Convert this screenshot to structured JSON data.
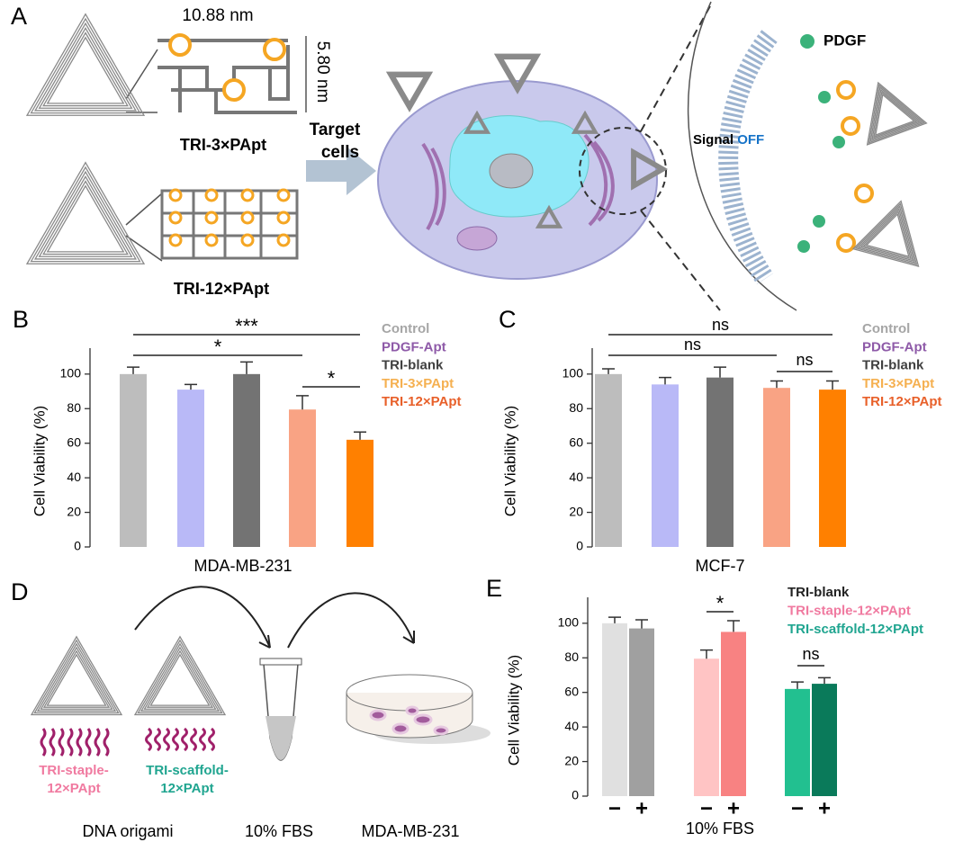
{
  "panel_a": {
    "label": "A",
    "dim_width": "10.88 nm",
    "dim_height": "5.80 nm",
    "structures": [
      "TRI-3×PApt",
      "TRI-12×PApt"
    ],
    "arrow_label": [
      "Target",
      "cells"
    ],
    "ligand": "PDGF",
    "signal": "Signal",
    "signal_state": "OFF"
  },
  "panel_d": {
    "label": "D",
    "samples": [
      [
        "TRI-staple-",
        "12×PApt"
      ],
      [
        "TRI-scaffold-",
        "12×PApt"
      ]
    ],
    "steps": [
      "DNA origami",
      "10% FBS",
      "MDA-MB-231"
    ]
  },
  "chart_data": [
    {
      "type": "bar",
      "panel": "B",
      "categories": [
        "MDA-MB-231"
      ],
      "ylabel": "Cell Viability (%)",
      "ylim": [
        0,
        115
      ],
      "yticks": [
        0,
        20,
        40,
        60,
        80,
        100
      ],
      "series": [
        {
          "name": "Control",
          "color": "#bdbdbd",
          "legend_color": "#a6a6a6",
          "values": [
            100
          ],
          "errors": [
            4
          ]
        },
        {
          "name": "PDGF-Apt",
          "color": "#b9b9f7",
          "legend_color": "#8e5aa8",
          "values": [
            91
          ],
          "errors": [
            3
          ]
        },
        {
          "name": "TRI-blank",
          "color": "#737373",
          "legend_color": "#404040",
          "values": [
            100
          ],
          "errors": [
            7
          ]
        },
        {
          "name": "TRI-3×PApt",
          "color": "#f9a384",
          "legend_color": "#f5b050",
          "values": [
            79.5
          ],
          "errors": [
            8
          ]
        },
        {
          "name": "TRI-12×PApt",
          "color": "#ff8000",
          "legend_color": "#e8602a",
          "values": [
            62
          ],
          "errors": [
            4.5
          ]
        }
      ],
      "annotations": [
        {
          "text": "***",
          "between": [
            "Control",
            "TRI-12×PApt"
          ]
        },
        {
          "text": "*",
          "between": [
            "Control",
            "TRI-3×PApt"
          ]
        },
        {
          "text": "*",
          "between": [
            "TRI-3×PApt",
            "TRI-12×PApt"
          ]
        }
      ]
    },
    {
      "type": "bar",
      "panel": "C",
      "categories": [
        "MCF-7"
      ],
      "ylabel": "Cell Viability (%)",
      "ylim": [
        0,
        115
      ],
      "yticks": [
        0,
        20,
        40,
        60,
        80,
        100
      ],
      "series": [
        {
          "name": "Control",
          "color": "#bdbdbd",
          "legend_color": "#a6a6a6",
          "values": [
            100
          ],
          "errors": [
            3
          ]
        },
        {
          "name": "PDGF-Apt",
          "color": "#b9b9f7",
          "legend_color": "#8e5aa8",
          "values": [
            94
          ],
          "errors": [
            4
          ]
        },
        {
          "name": "TRI-blank",
          "color": "#737373",
          "legend_color": "#404040",
          "values": [
            98
          ],
          "errors": [
            6
          ]
        },
        {
          "name": "TRI-3×PApt",
          "color": "#f9a384",
          "legend_color": "#f5b050",
          "values": [
            92
          ],
          "errors": [
            4
          ]
        },
        {
          "name": "TRI-12×PApt",
          "color": "#ff8000",
          "legend_color": "#e8602a",
          "values": [
            91
          ],
          "errors": [
            5
          ]
        }
      ],
      "annotations": [
        {
          "text": "ns",
          "between": [
            "Control",
            "TRI-12×PApt"
          ]
        },
        {
          "text": "ns",
          "between": [
            "Control",
            "TRI-3×PApt"
          ]
        },
        {
          "text": "ns",
          "between": [
            "TRI-3×PApt",
            "TRI-12×PApt"
          ]
        }
      ]
    },
    {
      "type": "grouped-bar",
      "panel": "E",
      "categories": [
        "−",
        "+"
      ],
      "xlabel": "10% FBS",
      "ylabel": "Cell Viability (%)",
      "ylim": [
        0,
        115
      ],
      "yticks": [
        0,
        20,
        40,
        60,
        80,
        100
      ],
      "series": [
        {
          "name": "TRI-blank",
          "colors": [
            "#e0e0e0",
            "#a0a0a0"
          ],
          "legend_color": "#222222",
          "values": [
            100,
            97
          ],
          "errors": [
            3.5,
            5
          ]
        },
        {
          "name": "TRI-staple-12×PApt",
          "colors": [
            "#ffc4c4",
            "#f88282"
          ],
          "legend_color": "#f07aa0",
          "values": [
            79.5,
            95
          ],
          "errors": [
            5,
            6.5
          ]
        },
        {
          "name": "TRI-scaffold-12×PApt",
          "colors": [
            "#22c090",
            "#0a7a5a"
          ],
          "legend_color": "#20a590",
          "values": [
            62,
            65
          ],
          "errors": [
            4,
            3.5
          ]
        }
      ],
      "annotations": [
        {
          "text": "*",
          "between": [
            "TRI-staple-12×PApt"
          ]
        },
        {
          "text": "ns",
          "between": [
            "TRI-scaffold-12×PApt"
          ]
        }
      ]
    }
  ]
}
